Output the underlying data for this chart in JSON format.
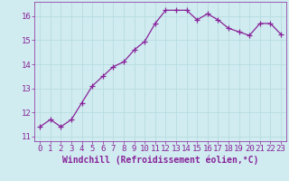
{
  "x": [
    0,
    1,
    2,
    3,
    4,
    5,
    6,
    7,
    8,
    9,
    10,
    11,
    12,
    13,
    14,
    15,
    16,
    17,
    18,
    19,
    20,
    21,
    22,
    23
  ],
  "y": [
    11.4,
    11.7,
    11.4,
    11.7,
    12.4,
    13.1,
    13.5,
    13.9,
    14.1,
    14.6,
    14.95,
    15.7,
    16.25,
    16.25,
    16.25,
    15.85,
    16.1,
    15.85,
    15.5,
    15.35,
    15.2,
    15.7,
    15.7,
    15.25
  ],
  "line_color": "#882299",
  "marker": "+",
  "marker_size": 4,
  "bg_color": "#d0ecf0",
  "grid_color": "#b8dce0",
  "tick_color": "#882299",
  "label_color": "#882299",
  "xlabel": "Windchill (Refroidissement éolien,°C)",
  "ylabel": "",
  "ylim": [
    10.8,
    16.6
  ],
  "xlim": [
    -0.5,
    23.5
  ],
  "yticks": [
    11,
    12,
    13,
    14,
    15,
    16
  ],
  "xticks": [
    0,
    1,
    2,
    3,
    4,
    5,
    6,
    7,
    8,
    9,
    10,
    11,
    12,
    13,
    14,
    15,
    16,
    17,
    18,
    19,
    20,
    21,
    22,
    23
  ],
  "xtick_labels": [
    "0",
    "1",
    "2",
    "3",
    "4",
    "5",
    "6",
    "7",
    "8",
    "9",
    "10",
    "11",
    "12",
    "13",
    "14",
    "15",
    "16",
    "17",
    "18",
    "19",
    "20",
    "21",
    "22",
    "23"
  ],
  "font_size": 6.5,
  "xlabel_font_size": 7
}
